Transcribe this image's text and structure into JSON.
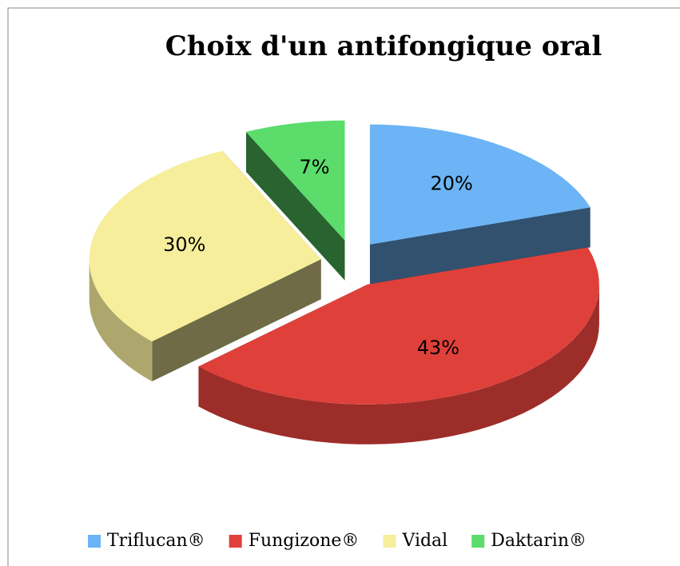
{
  "chart_data": {
    "type": "pie",
    "title": "Choix d'un antifongique oral",
    "categories": [
      "Triflucan®",
      "Fungizone®",
      "Vidal",
      "Daktarin®"
    ],
    "values": [
      20,
      43,
      30,
      7
    ],
    "value_labels": [
      "20%",
      "43%",
      "30%",
      "7%"
    ],
    "colors": [
      "#6cb4f5",
      "#e0403a",
      "#f7ee9c",
      "#5bdc6b"
    ],
    "legend": "bottom"
  }
}
